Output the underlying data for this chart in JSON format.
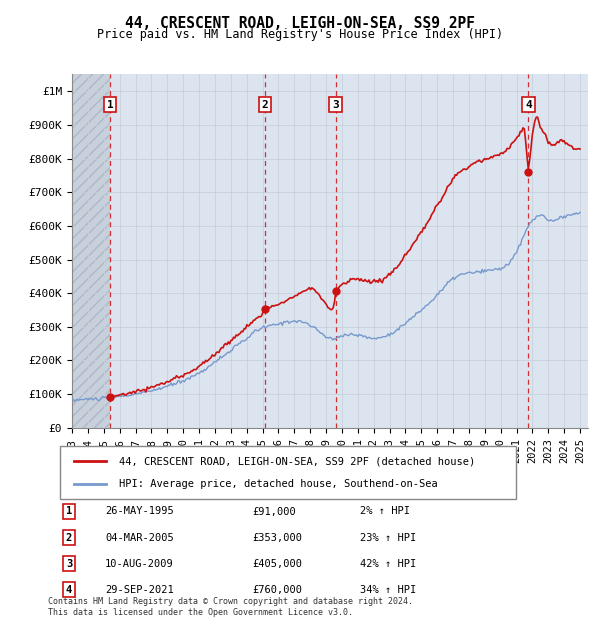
{
  "title": "44, CRESCENT ROAD, LEIGH-ON-SEA, SS9 2PF",
  "subtitle": "Price paid vs. HM Land Registry's House Price Index (HPI)",
  "transactions": [
    {
      "num": 1,
      "date": "26-MAY-1995",
      "year": 1995.4,
      "price": 91000,
      "pct": "2%",
      "arrow": "↑"
    },
    {
      "num": 2,
      "date": "04-MAR-2005",
      "year": 2005.17,
      "price": 353000,
      "pct": "23%",
      "arrow": "↑"
    },
    {
      "num": 3,
      "date": "10-AUG-2009",
      "year": 2009.6,
      "price": 405000,
      "pct": "42%",
      "arrow": "↑"
    },
    {
      "num": 4,
      "date": "29-SEP-2021",
      "year": 2021.75,
      "price": 760000,
      "pct": "34%",
      "arrow": "↑"
    }
  ],
  "legend_label_red": "44, CRESCENT ROAD, LEIGH-ON-SEA, SS9 2PF (detached house)",
  "legend_label_blue": "HPI: Average price, detached house, Southend-on-Sea",
  "footer": "Contains HM Land Registry data © Crown copyright and database right 2024.\nThis data is licensed under the Open Government Licence v3.0.",
  "hpi_color": "#7799cc",
  "price_color": "#cc1111",
  "marker_color": "#cc1111",
  "grid_color": "#c8d0dc",
  "bg_color": "#dce4f0",
  "hatch_color": "#c0c8d8",
  "xlim": [
    1993,
    2025.5
  ],
  "ylim": [
    0,
    1050000
  ],
  "yticks": [
    0,
    100000,
    200000,
    300000,
    400000,
    500000,
    600000,
    700000,
    800000,
    900000,
    1000000
  ],
  "ytick_labels": [
    "£0",
    "£100K",
    "£200K",
    "£300K",
    "£400K",
    "£500K",
    "£600K",
    "£700K",
    "£800K",
    "£900K",
    "£1M"
  ],
  "xticks": [
    1993,
    1994,
    1995,
    1996,
    1997,
    1998,
    1999,
    2000,
    2001,
    2002,
    2003,
    2004,
    2005,
    2006,
    2007,
    2008,
    2009,
    2010,
    2011,
    2012,
    2013,
    2014,
    2015,
    2016,
    2017,
    2018,
    2019,
    2020,
    2021,
    2022,
    2023,
    2024,
    2025
  ]
}
